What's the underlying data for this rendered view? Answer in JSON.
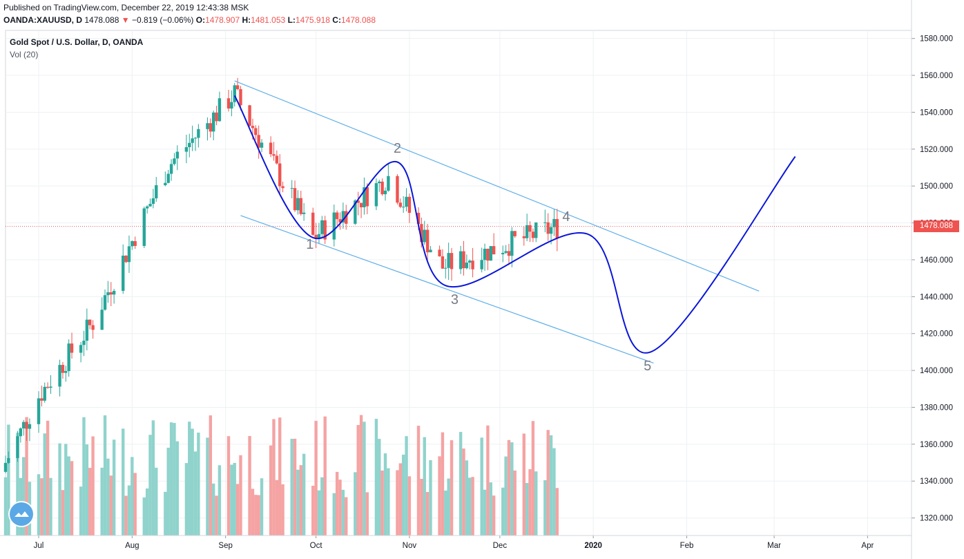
{
  "header": {
    "published": "Published on TradingView.com, December 22, 2019 12:43:38 MSK",
    "symbol": "OANDA:XAUUSD, D",
    "last": "1478.088",
    "change": "−0.819 (−0.06%)",
    "o_label": "O:",
    "o_value": "1478.907",
    "h_label": "H:",
    "h_value": "1481.053",
    "l_label": "L:",
    "l_value": "1475.918",
    "c_label": "C:",
    "c_value": "1478.088"
  },
  "legend": {
    "title": "Gold Spot / U.S. Dollar, D, OANDA",
    "volume": "Vol (20)"
  },
  "last_price_label": "1478.088",
  "colors": {
    "up": "#26a69a",
    "down": "#ef5350",
    "vol_up": "#8fd3cc",
    "vol_down": "#f5a3a3",
    "channel": "#5eaee8",
    "forecast": "#0a16d8",
    "grid": "#eef0f3",
    "price_line": "#e15a5a"
  },
  "chart_data": {
    "type": "candlestick",
    "symbol": "OANDA:XAUUSD",
    "timeframe": "D",
    "y_ticks": [
      "1580.000",
      "1560.000",
      "1540.000",
      "1520.000",
      "1500.000",
      "1480.000",
      "1460.000",
      "1440.000",
      "1420.000",
      "1400.000",
      "1380.000",
      "1360.000",
      "1340.000",
      "1320.000"
    ],
    "x_ticks": [
      "Jul",
      "Aug",
      "Sep",
      "Oct",
      "Nov",
      "Dec",
      "2020",
      "Feb",
      "Mar",
      "Apr"
    ],
    "ylim": [
      1314,
      1584
    ],
    "last_price": 1478.088,
    "key_closes": [
      {
        "date": "2019-07-01",
        "close": 1386
      },
      {
        "date": "2019-07-19",
        "close": 1426
      },
      {
        "date": "2019-08-13",
        "close": 1511
      },
      {
        "date": "2019-09-04",
        "close": 1550
      },
      {
        "date": "2019-09-30",
        "close": 1472
      },
      {
        "date": "2019-10-25",
        "close": 1505
      },
      {
        "date": "2019-11-12",
        "close": 1456
      },
      {
        "date": "2019-12-20",
        "close": 1478
      }
    ],
    "channel_upper": [
      {
        "date": "2019-09-04",
        "price": 1557
      },
      {
        "date": "2020-02-25",
        "price": 1443
      }
    ],
    "channel_lower": [
      {
        "date": "2019-09-06",
        "price": 1484
      },
      {
        "date": "2020-01-21",
        "price": 1404
      }
    ],
    "wave_labels": [
      {
        "label": "1",
        "date": "2019-09-29",
        "price": 1466
      },
      {
        "label": "2",
        "date": "2019-10-28",
        "price": 1518
      },
      {
        "label": "3",
        "date": "2019-11-16",
        "price": 1436
      },
      {
        "label": "4",
        "date": "2019-12-23",
        "price": 1481
      },
      {
        "label": "5",
        "date": "2020-01-19",
        "price": 1400
      }
    ],
    "forecast_path": [
      {
        "date": "2019-09-04",
        "price": 1549
      },
      {
        "date": "2019-09-30",
        "price": 1472
      },
      {
        "date": "2019-10-28",
        "price": 1513
      },
      {
        "date": "2019-11-13",
        "price": 1446
      },
      {
        "date": "2019-12-30",
        "price": 1474
      },
      {
        "date": "2020-01-20",
        "price": 1410
      },
      {
        "date": "2020-03-08",
        "price": 1516
      }
    ]
  }
}
